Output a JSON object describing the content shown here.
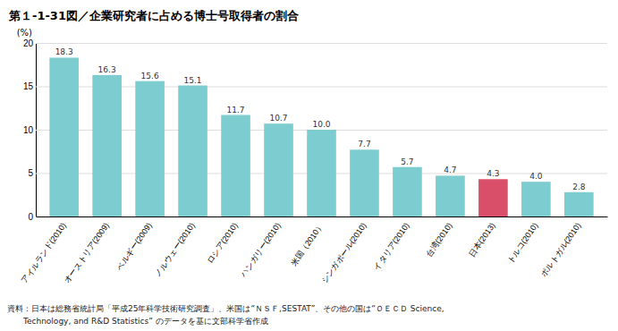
{
  "chart_data": {
    "type": "bar",
    "title": "第１-1-31図／企業研究者に占める博士号取得者の割合",
    "categories": [
      "アイルランド(2010)",
      "オーストリア(2009)",
      "ベルギー(2009)",
      "ノルウェー(2010)",
      "ロシア(2010)",
      "ハンガリー(2010)",
      "米国（2010）",
      "シンガポール(2010)",
      "イタリア(2010)",
      "台湾(2010)",
      "日本(2013)",
      "トルコ(2010)",
      "ポルトガル(2010)"
    ],
    "values": [
      18.3,
      16.3,
      15.6,
      15.1,
      11.7,
      10.7,
      10.0,
      7.7,
      5.7,
      4.7,
      4.3,
      4.0,
      2.8
    ],
    "value_labels": [
      "18.3",
      "16.3",
      "15.6",
      "15.1",
      "11.7",
      "10.7",
      "10.0",
      "7.7",
      "5.7",
      "4.7",
      "4.3",
      "4.0",
      "2.8"
    ],
    "colors": [
      "#7DCDD0",
      "#7DCDD0",
      "#7DCDD0",
      "#7DCDD0",
      "#7DCDD0",
      "#7DCDD0",
      "#7DCDD0",
      "#7DCDD0",
      "#7DCDD0",
      "#7DCDD0",
      "#D94F6A",
      "#7DCDD0",
      "#7DCDD0"
    ],
    "ylabel": "(%)",
    "ylim": [
      0,
      20
    ],
    "yticks": [
      0,
      5,
      10,
      15,
      20
    ],
    "grid": true,
    "data_labels": true,
    "annotations": [
      "資料：日本は総務省統計局「平成25年科学技術研究調査」、米国は“ＮＳＦ,SESTAT”、その他の国は“ＯＥＣＤ Science,",
      "　　Technology, and R&D Statistics” のデータを基に文部科学省作成"
    ]
  }
}
